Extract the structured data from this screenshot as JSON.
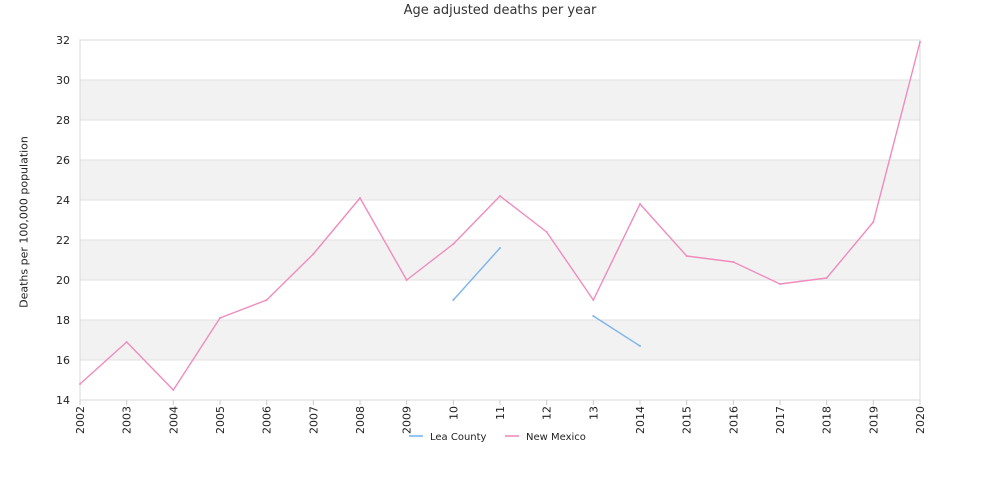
{
  "chart_data": {
    "type": "line",
    "title": "Age adjusted deaths per year",
    "xlabel": "",
    "ylabel": "Deaths per 100,000 population",
    "ylim": [
      14,
      32
    ],
    "yticks": [
      14,
      16,
      18,
      20,
      22,
      24,
      26,
      28,
      30,
      32
    ],
    "categories": [
      "2002",
      "2003",
      "2004",
      "2005",
      "2006",
      "2007",
      "2008",
      "2009",
      "2010",
      "2011",
      "2012",
      "2013",
      "2014",
      "2015",
      "2016",
      "2017",
      "2018",
      "2019",
      "2020"
    ],
    "tick_labels": [
      "2002",
      "2003",
      "2004",
      "2005",
      "2006",
      "2007",
      "2008",
      "2009",
      "10",
      "11",
      "12",
      "13",
      "2014",
      "2015",
      "2016",
      "2017",
      "2018",
      "2019",
      "2020"
    ],
    "series": [
      {
        "name": "Lea County",
        "color": "#7cb5ec",
        "values": [
          null,
          null,
          null,
          null,
          null,
          null,
          null,
          null,
          19.0,
          21.6,
          null,
          18.2,
          16.7,
          null,
          null,
          null,
          null,
          null,
          null
        ]
      },
      {
        "name": "New Mexico",
        "color": "#f08cbc",
        "values": [
          14.8,
          16.9,
          14.5,
          18.1,
          19.0,
          21.3,
          24.1,
          20.0,
          21.8,
          24.2,
          22.4,
          19.0,
          23.8,
          21.2,
          20.9,
          19.8,
          20.1,
          22.9,
          31.9
        ]
      }
    ],
    "grid": true,
    "band_color": "#f2f2f2",
    "legend_position": "bottom-center"
  }
}
